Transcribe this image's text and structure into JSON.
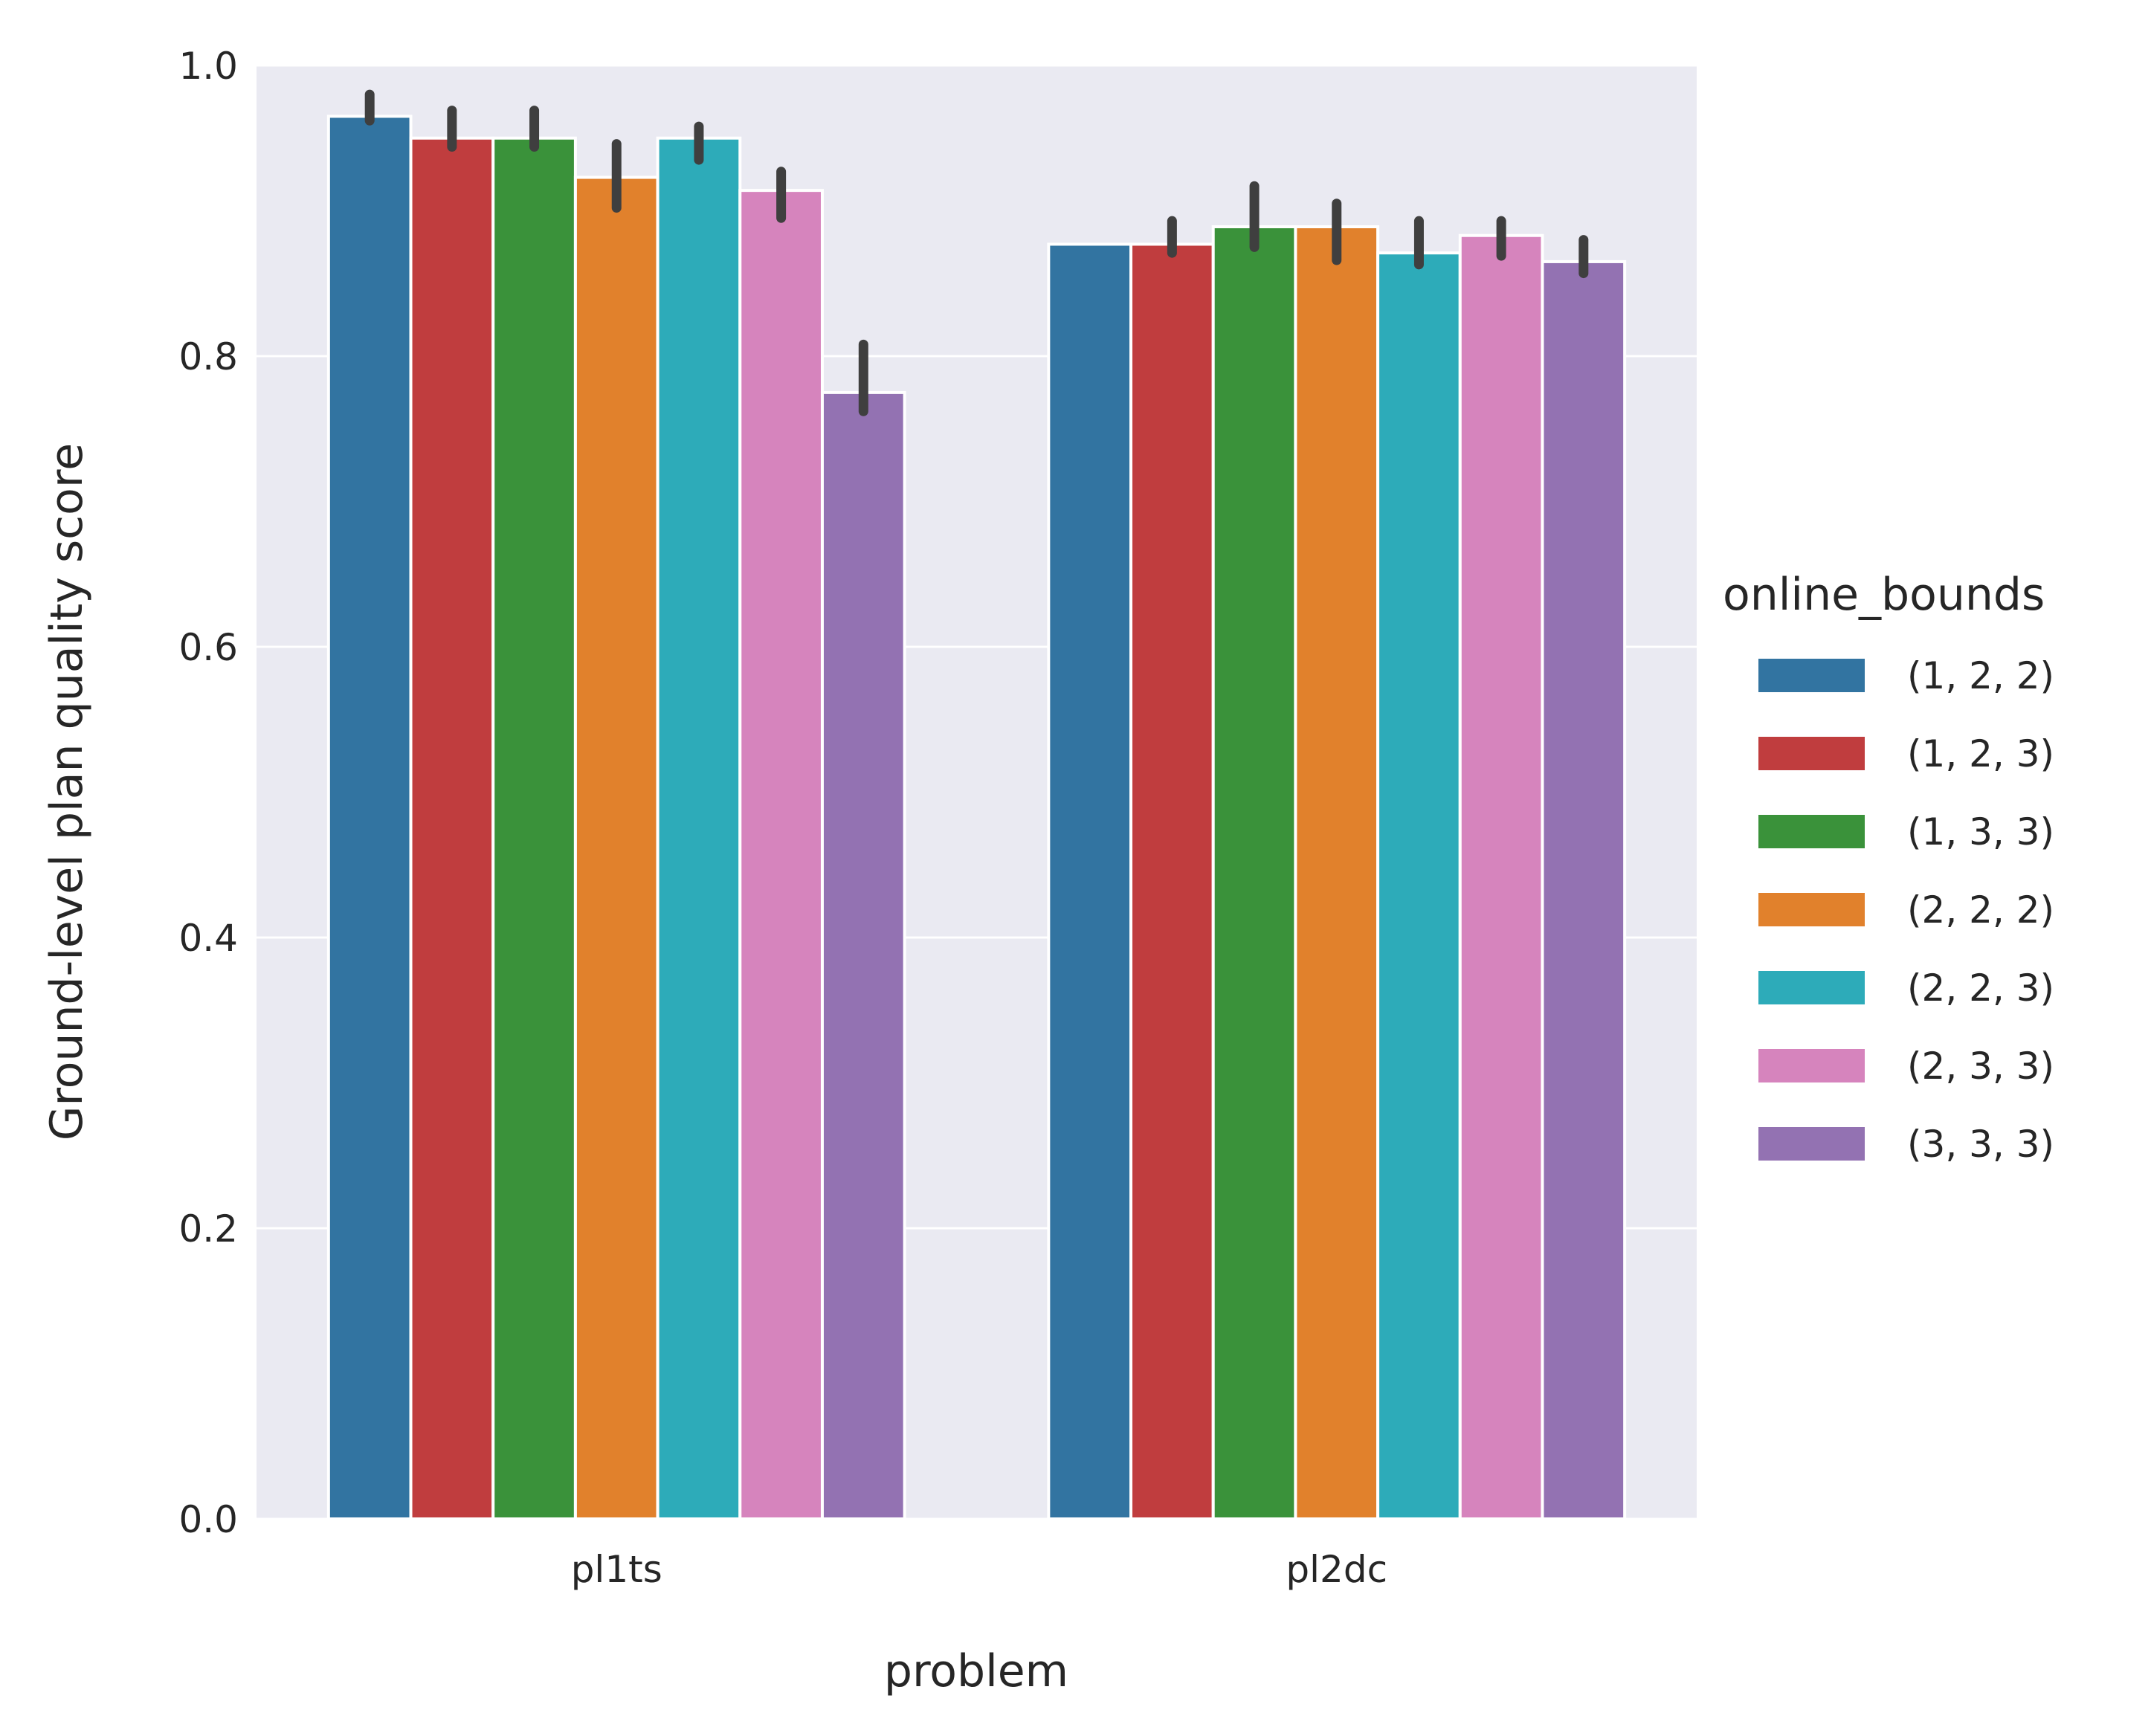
{
  "chart_data": {
    "type": "bar",
    "xlabel": "problem",
    "ylabel": "Ground-level plan quality score",
    "ylim": [
      0,
      1.0
    ],
    "yticks": [
      "0.0",
      "0.2",
      "0.4",
      "0.6",
      "0.8",
      "1.0"
    ],
    "categories": [
      "pl1ts",
      "pl2dc"
    ],
    "grid": true,
    "legend": {
      "title": "online_bounds",
      "placement": "right"
    },
    "series": [
      {
        "name": "(1, 2, 2)",
        "color": "#3274a1",
        "values": [
          0.965,
          0.877
        ],
        "error": [
          [
            0.962,
            0.98
          ],
          null
        ]
      },
      {
        "name": "(1, 2, 3)",
        "color": "#c03d3e",
        "values": [
          0.95,
          0.877
        ],
        "error": [
          [
            0.944,
            0.969
          ],
          [
            0.871,
            0.893
          ]
        ]
      },
      {
        "name": "(1, 3, 3)",
        "color": "#3a923a",
        "values": [
          0.95,
          0.889
        ],
        "error": [
          [
            0.944,
            0.969
          ],
          [
            0.875,
            0.917
          ]
        ]
      },
      {
        "name": "(2, 2, 2)",
        "color": "#e1812c",
        "values": [
          0.923,
          0.889
        ],
        "error": [
          [
            0.902,
            0.946
          ],
          [
            0.866,
            0.905
          ]
        ]
      },
      {
        "name": "(2, 2, 3)",
        "color": "#2dabb9",
        "values": [
          0.95,
          0.871
        ],
        "error": [
          [
            0.935,
            0.958
          ],
          [
            0.863,
            0.893
          ]
        ]
      },
      {
        "name": "(2, 3, 3)",
        "color": "#d684bd",
        "values": [
          0.914,
          0.883
        ],
        "error": [
          [
            0.895,
            0.927
          ],
          [
            0.869,
            0.893
          ]
        ]
      },
      {
        "name": "(3, 3, 3)",
        "color": "#9372b2",
        "values": [
          0.775,
          0.865
        ],
        "error": [
          [
            0.762,
            0.808
          ],
          [
            0.857,
            0.88
          ]
        ]
      }
    ]
  }
}
